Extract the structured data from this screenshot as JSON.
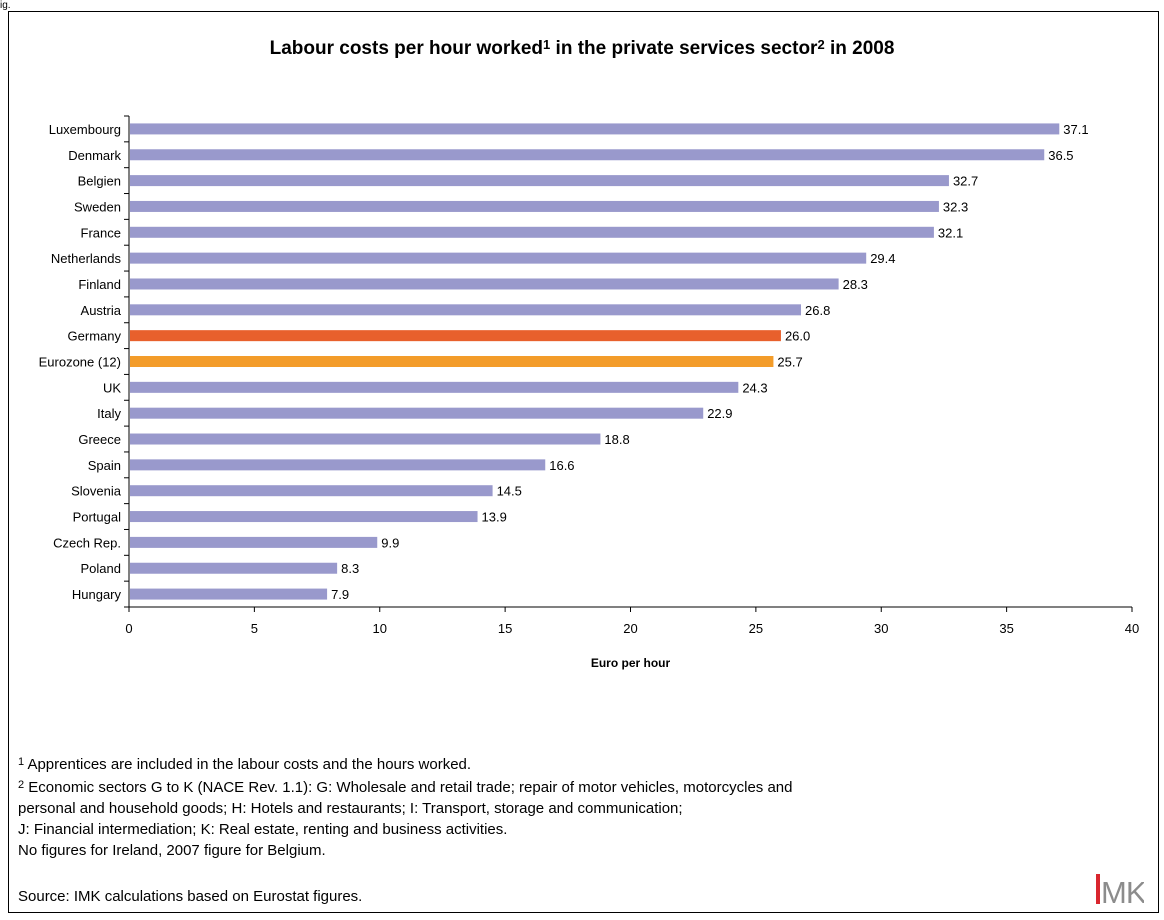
{
  "corner_label": "ig.",
  "title_main": "Labour costs per hour worked",
  "title_fn1": "1",
  "title_mid": " in the private services sector",
  "title_fn2": "2",
  "title_end": " in 2008",
  "notes": {
    "fn1_mark": "1",
    "fn1_text": " Apprentices are included in the labour costs and the hours worked.",
    "fn2_mark": "2",
    "fn2_line1": " Economic sectors G to K (NACE Rev. 1.1): G: Wholesale and retail trade; repair of motor vehicles, motorcycles and",
    "fn2_line2": "personal and household goods; H: Hotels and restaurants; I: Transport, storage and communication;",
    "fn2_line3": "J: Financial intermediation; K: Real estate, renting and business activities.",
    "line4": "No figures for Ireland, 2007 figure for Belgium."
  },
  "source": "Source: IMK calculations based on Eurostat figures.",
  "logo_text": "IMK",
  "colors": {
    "default_bar": "#9999cc",
    "germany_bar": "#e8602c",
    "eurozone_bar": "#f39c2a",
    "logo_red": "#d9262e",
    "logo_grey": "#8c8c8c"
  },
  "chart_data": {
    "type": "bar",
    "orientation": "horizontal",
    "title": "Labour costs per hour worked¹ in the private services sector² in 2008",
    "xlabel": "Euro per hour",
    "ylabel": "",
    "xlim": [
      0,
      40
    ],
    "xticks": [
      0,
      5,
      10,
      15,
      20,
      25,
      30,
      35,
      40
    ],
    "grid": false,
    "categories": [
      "Luxembourg",
      "Denmark",
      "Belgien",
      "Sweden",
      "France",
      "Netherlands",
      "Finland",
      "Austria",
      "Germany",
      "Eurozone (12)",
      "UK",
      "Italy",
      "Greece",
      "Spain",
      "Slovenia",
      "Portugal",
      "Czech Rep.",
      "Poland",
      "Hungary"
    ],
    "values": [
      37.1,
      36.5,
      32.7,
      32.3,
      32.1,
      29.4,
      28.3,
      26.8,
      26.0,
      25.7,
      24.3,
      22.9,
      18.8,
      16.6,
      14.5,
      13.9,
      9.9,
      8.3,
      7.9
    ],
    "value_labels": [
      "37.1",
      "36.5",
      "32.7",
      "32.3",
      "32.1",
      "29.4",
      "28.3",
      "26.8",
      "26.0",
      "25.7",
      "24.3",
      "22.9",
      "18.8",
      "16.6",
      "14.5",
      "13.9",
      "9.9",
      "8.3",
      "7.9"
    ],
    "highlight": {
      "Germany": "#e8602c",
      "Eurozone (12)": "#f39c2a"
    }
  }
}
